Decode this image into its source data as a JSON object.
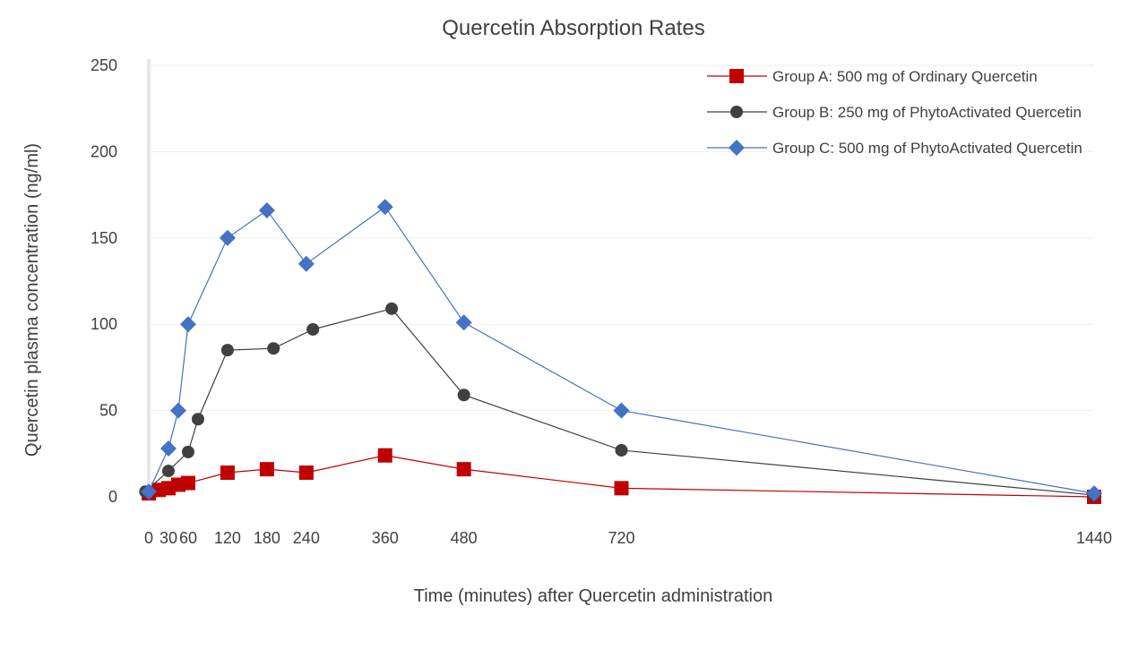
{
  "chart_data": {
    "type": "line",
    "title": "Quercetin Absorption Rates",
    "xlabel": "Time (minutes) after Quercetin administration",
    "ylabel": "Quercetin plasma concentration (ng/ml)",
    "xlim": [
      0,
      1440
    ],
    "ylim": [
      0,
      250
    ],
    "x_ticks": [
      "0",
      "30",
      "60",
      "120",
      "180",
      "240",
      "360",
      "480",
      "720",
      "1440"
    ],
    "y_ticks": [
      "0",
      "50",
      "100",
      "150",
      "200",
      "250"
    ],
    "grid": true,
    "legend_position": "top-right",
    "series": [
      {
        "name": "Group A: 500 mg of Ordinary Quercetin",
        "color": "#c00000",
        "marker": "square",
        "points": [
          [
            0,
            2
          ],
          [
            15,
            4
          ],
          [
            30,
            5
          ],
          [
            45,
            7
          ],
          [
            60,
            8
          ],
          [
            120,
            14
          ],
          [
            180,
            16
          ],
          [
            240,
            14
          ],
          [
            360,
            24
          ],
          [
            480,
            16
          ],
          [
            720,
            5
          ],
          [
            1440,
            0
          ]
        ]
      },
      {
        "name": "Group B: 250 mg of PhytoActivated Quercetin",
        "color": "#404040",
        "marker": "circle",
        "points": [
          [
            -5,
            3
          ],
          [
            30,
            15
          ],
          [
            60,
            26
          ],
          [
            75,
            45
          ],
          [
            120,
            85
          ],
          [
            190,
            86
          ],
          [
            250,
            97
          ],
          [
            370,
            109
          ],
          [
            480,
            59
          ],
          [
            720,
            27
          ],
          [
            1440,
            1
          ]
        ]
      },
      {
        "name": "Group C: 500 mg of PhytoActivated Quercetin",
        "color": "#4472c4",
        "marker": "diamond",
        "points": [
          [
            0,
            3
          ],
          [
            30,
            28
          ],
          [
            45,
            50
          ],
          [
            60,
            100
          ],
          [
            120,
            150
          ],
          [
            180,
            166
          ],
          [
            240,
            135
          ],
          [
            360,
            168
          ],
          [
            480,
            101
          ],
          [
            720,
            50
          ],
          [
            1440,
            2
          ]
        ]
      }
    ]
  }
}
